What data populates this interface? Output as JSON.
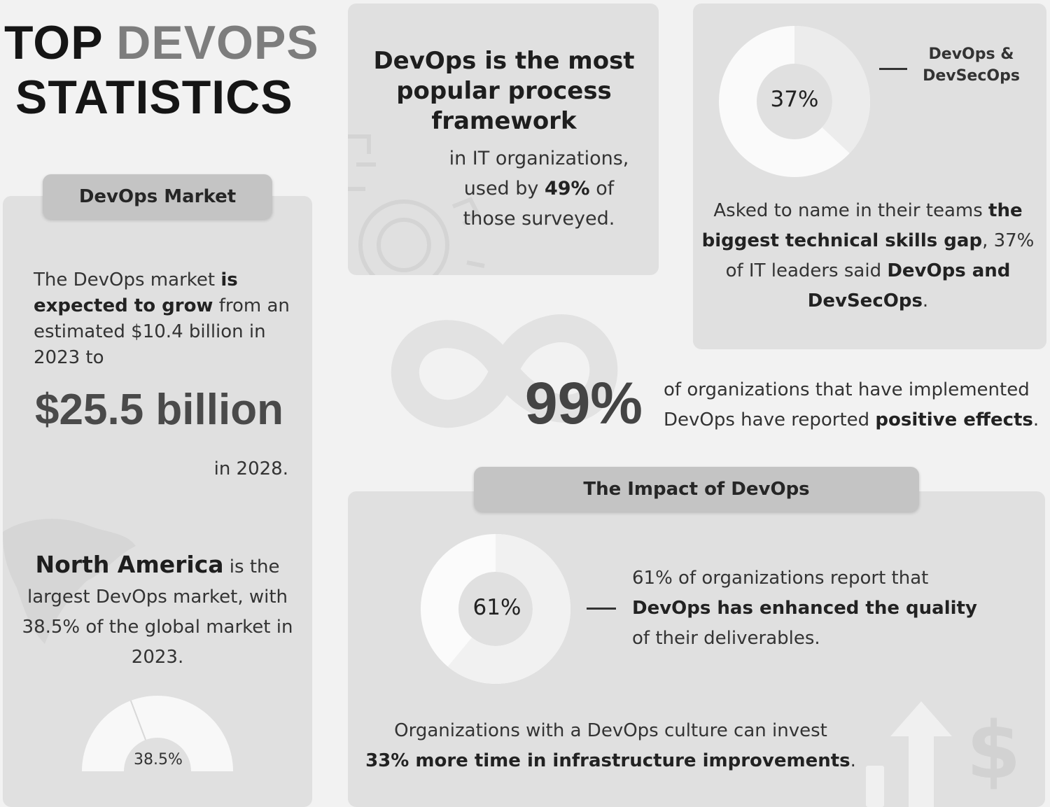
{
  "title": {
    "word1": "TOP",
    "word2": "DEVOPS",
    "line2": "STATISTICS"
  },
  "market": {
    "header": "DevOps Market",
    "body_1": "The DevOps market ",
    "body_bold": "is expected to grow",
    "body_2": " from an estimated $10.4 billion in 2023 to",
    "big_value": "$25.5 billion",
    "year": "in 2028.",
    "region_bold": "North America",
    "region_text": " is the largest DevOps market, with 38.5% of the global market in 2023.",
    "gauge": {
      "label": "38.5%",
      "value": 38.5
    }
  },
  "popular": {
    "heading": "DevOps is the most popular process framework",
    "body_1": "in IT organizations, used by ",
    "body_bold": "49%",
    "body_2": " of those surveyed."
  },
  "skills": {
    "donut": {
      "label": "37%",
      "value": 37
    },
    "legend": "DevOps & DevSecOps",
    "text_1": "Asked to name in their teams ",
    "text_bold_1": "the biggest technical skills gap",
    "text_2": ", 37% of IT leaders said ",
    "text_bold_2": "DevOps and DevSecOps",
    "text_3": "."
  },
  "positive": {
    "big": "99%",
    "line1": "of organizations that have implemented",
    "line2_a": "DevOps have reported ",
    "line2_bold": "positive effects",
    "line2_b": "."
  },
  "impact": {
    "header": "The Impact of DevOps",
    "donut": {
      "label": "61%",
      "value": 61
    },
    "line1": "61% of organizations report that",
    "line2_bold": "DevOps has enhanced the quality",
    "line3": "of their deliverables.",
    "infra_1": "Organizations with a DevOps culture can invest",
    "infra_bold": "33% more time in infrastructure improvements",
    "infra_2": ".",
    "dollar": "$"
  },
  "icons": [
    "gear-icon",
    "infinity-icon",
    "world-map-icon",
    "growth-arrow-icon",
    "dollar-icon"
  ],
  "colors": {
    "background": "#f2f2f2",
    "card": "#e0e0e0",
    "pill": "#c4c4c4",
    "ring": "#f7f7f7"
  }
}
